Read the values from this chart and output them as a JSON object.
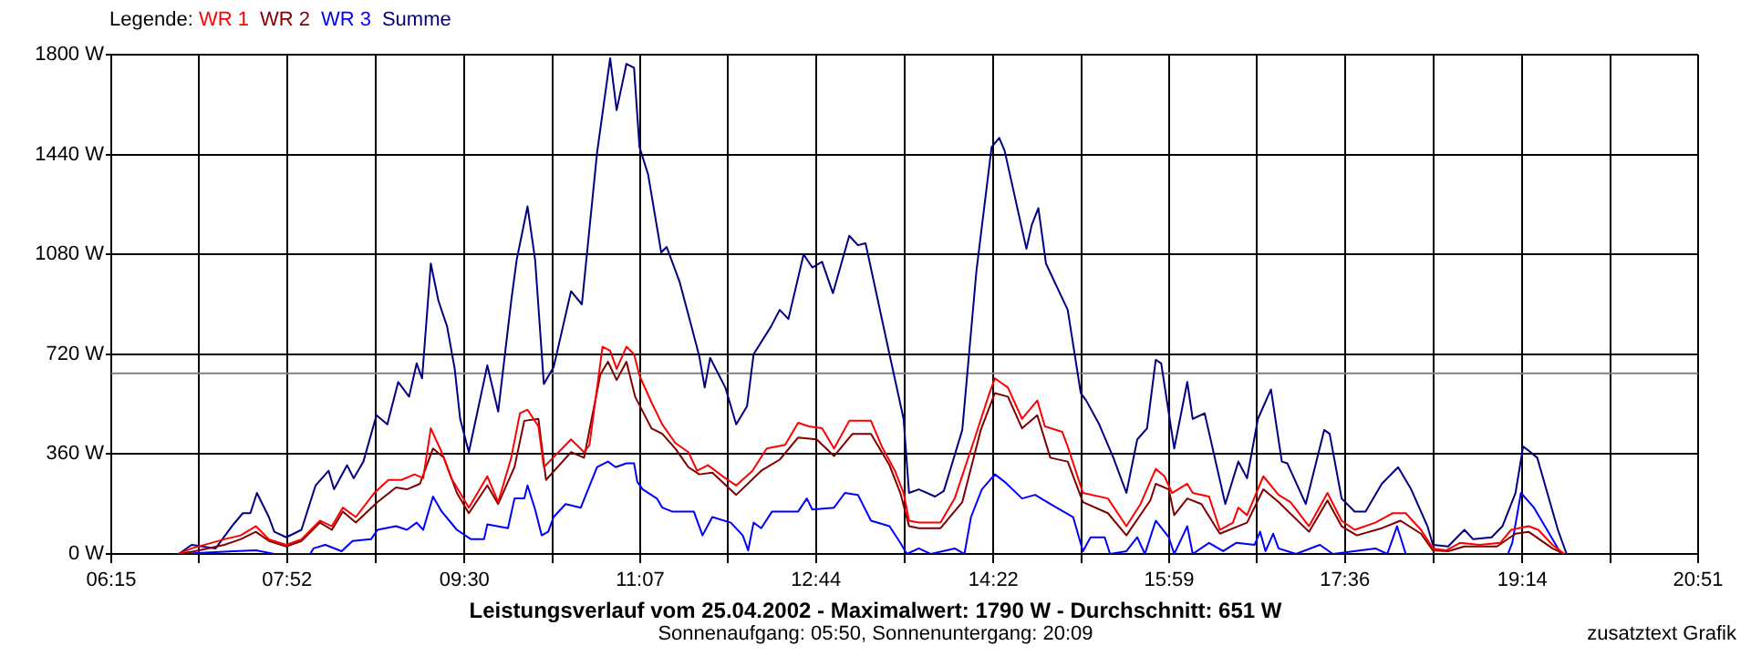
{
  "chart_data": {
    "type": "line",
    "xlabel": "Leistungsverlauf vom 25.04.2002 - Maximalwert: 1790 W - Durchschnitt: 651 W",
    "legend_title": "Legende:",
    "legend": "top left",
    "grid": true,
    "marker": "none",
    "line_style": "solid",
    "xlim": [
      6.25,
      20.85
    ],
    "xticks": [
      {
        "value": 6.25,
        "label": "06:15"
      },
      {
        "value": 7.0583,
        "label": null
      },
      {
        "value": 7.8667,
        "label": "07:52"
      },
      {
        "value": 8.6833,
        "label": null
      },
      {
        "value": 9.5,
        "label": "09:30"
      },
      {
        "value": 10.3083,
        "label": null
      },
      {
        "value": 11.1167,
        "label": "11:07"
      },
      {
        "value": 11.925,
        "label": null
      },
      {
        "value": 12.7333,
        "label": "12:44"
      },
      {
        "value": 13.55,
        "label": null
      },
      {
        "value": 14.3667,
        "label": "14:22"
      },
      {
        "value": 15.175,
        "label": null
      },
      {
        "value": 15.9833,
        "label": "15:59"
      },
      {
        "value": 16.7917,
        "label": null
      },
      {
        "value": 17.6,
        "label": "17:36"
      },
      {
        "value": 18.4167,
        "label": null
      },
      {
        "value": 19.2333,
        "label": "19:14"
      },
      {
        "value": 20.0417,
        "label": null
      },
      {
        "value": 20.85,
        "label": "20:51"
      }
    ],
    "ylim": [
      0,
      1800
    ],
    "yticks": [
      {
        "value": 0,
        "label": "0 W"
      },
      {
        "value": 360,
        "label": "360 W"
      },
      {
        "value": 720,
        "label": "720 W"
      },
      {
        "value": 1080,
        "label": "1080 W"
      },
      {
        "value": 1440,
        "label": "1440 W"
      },
      {
        "value": 1800,
        "label": "1800 W"
      }
    ],
    "ref_lines": [
      {
        "axis": "y",
        "value": 651,
        "color": "#808080"
      }
    ],
    "annotations": [
      "Sonnenaufgang: 05:50, Sonnenuntergang: 20:09",
      "zusatztext Grafik"
    ],
    "series": [
      {
        "name": "WR 1",
        "color": "#ff0000",
        "x": [
          6.87,
          6.99,
          7.29,
          7.44,
          7.58,
          7.7,
          7.86,
          8.0,
          8.17,
          8.28,
          8.38,
          8.5,
          8.67,
          8.8,
          8.92,
          9.04,
          9.12,
          9.19,
          9.29,
          9.38,
          9.54,
          9.71,
          9.81,
          9.93,
          10.01,
          10.08,
          10.18,
          10.23,
          10.48,
          10.6,
          10.65,
          10.77,
          10.84,
          10.9,
          10.99,
          11.06,
          11.11,
          11.22,
          11.32,
          11.44,
          11.56,
          11.64,
          11.74,
          11.9,
          12.0,
          12.15,
          12.28,
          12.45,
          12.57,
          12.67,
          12.79,
          12.9,
          13.04,
          13.24,
          13.34,
          13.46,
          13.54,
          13.59,
          13.68,
          13.88,
          14.01,
          14.18,
          14.33,
          14.38,
          14.5,
          14.63,
          14.77,
          14.84,
          15.0,
          15.05,
          15.19,
          15.42,
          15.59,
          15.72,
          15.86,
          15.94,
          16.01,
          16.15,
          16.2,
          16.35,
          16.45,
          16.57,
          16.62,
          16.7,
          16.85,
          16.99,
          17.1,
          17.27,
          17.44,
          17.57,
          17.69,
          17.88,
          18.04,
          18.16,
          18.3,
          18.41,
          18.53,
          18.66,
          18.84,
          19.03,
          19.13,
          19.29,
          19.38,
          19.51,
          19.62
        ],
        "values": [
          0,
          20,
          53,
          67,
          100,
          53,
          33,
          53,
          120,
          100,
          167,
          133,
          220,
          267,
          267,
          287,
          273,
          453,
          367,
          273,
          167,
          280,
          187,
          347,
          507,
          520,
          460,
          313,
          413,
          367,
          393,
          747,
          733,
          667,
          747,
          720,
          643,
          547,
          467,
          400,
          367,
          300,
          320,
          273,
          247,
          300,
          380,
          393,
          473,
          460,
          453,
          380,
          480,
          480,
          387,
          300,
          220,
          120,
          113,
          113,
          200,
          400,
          580,
          633,
          600,
          487,
          553,
          460,
          440,
          387,
          220,
          200,
          100,
          180,
          307,
          280,
          220,
          253,
          220,
          207,
          87,
          113,
          167,
          140,
          280,
          213,
          187,
          100,
          220,
          120,
          87,
          113,
          147,
          147,
          87,
          20,
          13,
          40,
          33,
          40,
          87,
          100,
          87,
          33,
          0
        ]
      },
      {
        "name": "WR 2",
        "color": "#800000",
        "x": [
          6.87,
          7.02,
          7.29,
          7.44,
          7.58,
          7.7,
          7.86,
          8.0,
          8.17,
          8.28,
          8.38,
          8.5,
          8.7,
          8.87,
          8.97,
          9.09,
          9.21,
          9.31,
          9.43,
          9.54,
          9.71,
          9.81,
          9.96,
          10.05,
          10.18,
          10.25,
          10.48,
          10.6,
          10.75,
          10.82,
          10.9,
          10.99,
          11.07,
          11.22,
          11.32,
          11.44,
          11.56,
          11.66,
          11.78,
          12.0,
          12.23,
          12.4,
          12.57,
          12.74,
          12.9,
          13.07,
          13.24,
          13.41,
          13.51,
          13.59,
          13.68,
          13.88,
          14.08,
          14.25,
          14.38,
          14.5,
          14.63,
          14.77,
          14.89,
          15.05,
          15.19,
          15.42,
          15.59,
          15.81,
          15.86,
          15.98,
          16.03,
          16.15,
          16.28,
          16.45,
          16.7,
          16.85,
          16.99,
          17.27,
          17.44,
          17.57,
          17.71,
          17.94,
          18.11,
          18.3,
          18.41,
          18.55,
          18.7,
          19.0,
          19.17,
          19.29,
          19.51,
          19.62
        ],
        "values": [
          0,
          10,
          33,
          53,
          80,
          47,
          27,
          47,
          113,
          87,
          153,
          113,
          187,
          240,
          233,
          253,
          380,
          347,
          220,
          147,
          247,
          180,
          313,
          480,
          487,
          267,
          367,
          347,
          647,
          693,
          627,
          693,
          567,
          453,
          433,
          380,
          313,
          287,
          293,
          213,
          300,
          340,
          420,
          413,
          353,
          433,
          433,
          320,
          220,
          100,
          93,
          93,
          187,
          447,
          580,
          567,
          453,
          500,
          347,
          333,
          187,
          147,
          67,
          193,
          253,
          233,
          140,
          200,
          180,
          73,
          113,
          233,
          187,
          80,
          193,
          100,
          67,
          93,
          120,
          73,
          13,
          10,
          27,
          27,
          73,
          80,
          20,
          0
        ]
      },
      {
        "name": "WR 3",
        "color": "#0000ff",
        "x": [
          6.87,
          7.38,
          7.58,
          7.75,
          8.08,
          8.11,
          8.22,
          8.37,
          8.47,
          8.64,
          8.7,
          8.87,
          8.97,
          9.06,
          9.12,
          9.21,
          9.29,
          9.43,
          9.56,
          9.68,
          9.71,
          9.9,
          9.96,
          10.05,
          10.08,
          10.15,
          10.21,
          10.27,
          10.32,
          10.43,
          10.57,
          10.72,
          10.82,
          10.89,
          10.99,
          11.06,
          11.09,
          11.14,
          11.27,
          11.32,
          11.41,
          11.61,
          11.69,
          11.78,
          11.95,
          12.06,
          12.11,
          12.16,
          12.23,
          12.33,
          12.57,
          12.65,
          12.7,
          12.9,
          13.0,
          13.12,
          13.24,
          13.41,
          13.51,
          13.57,
          13.68,
          13.79,
          14.01,
          14.1,
          14.16,
          14.26,
          14.38,
          14.47,
          14.63,
          14.75,
          14.89,
          15.1,
          15.19,
          15.26,
          15.39,
          15.44,
          15.59,
          15.69,
          15.76,
          15.86,
          15.98,
          16.03,
          16.15,
          16.2,
          16.35,
          16.48,
          16.6,
          16.77,
          16.82,
          16.87,
          16.94,
          16.99,
          17.15,
          17.37,
          17.49,
          17.88,
          17.99,
          18.08,
          18.16,
          19.1,
          19.14,
          19.22,
          19.34,
          19.46,
          19.59
        ],
        "values": [
          0,
          10,
          13,
          0,
          0,
          20,
          33,
          10,
          47,
          53,
          87,
          100,
          87,
          113,
          87,
          207,
          153,
          87,
          53,
          53,
          107,
          93,
          200,
          200,
          247,
          160,
          67,
          80,
          133,
          180,
          167,
          313,
          333,
          313,
          327,
          327,
          260,
          233,
          200,
          167,
          153,
          153,
          67,
          133,
          113,
          67,
          13,
          113,
          93,
          153,
          153,
          200,
          160,
          167,
          220,
          213,
          120,
          100,
          40,
          0,
          20,
          0,
          20,
          0,
          133,
          233,
          287,
          260,
          200,
          213,
          180,
          133,
          10,
          60,
          60,
          0,
          10,
          60,
          0,
          120,
          60,
          0,
          100,
          0,
          40,
          10,
          40,
          33,
          80,
          10,
          73,
          20,
          0,
          33,
          0,
          20,
          0,
          100,
          0,
          0,
          40,
          220,
          167,
          87,
          0
        ]
      },
      {
        "name": "Summe",
        "color": "#000080",
        "x": [
          6.8,
          6.87,
          6.99,
          7.21,
          7.36,
          7.46,
          7.53,
          7.59,
          7.7,
          7.75,
          7.86,
          8.0,
          8.13,
          8.25,
          8.3,
          8.42,
          8.48,
          8.57,
          8.69,
          8.79,
          8.89,
          8.99,
          9.06,
          9.11,
          9.19,
          9.26,
          9.34,
          9.41,
          9.46,
          9.54,
          9.71,
          9.81,
          9.93,
          9.98,
          10.08,
          10.15,
          10.23,
          10.32,
          10.48,
          10.58,
          10.72,
          10.84,
          10.9,
          10.99,
          11.06,
          11.11,
          11.19,
          11.31,
          11.36,
          11.48,
          11.58,
          11.66,
          11.71,
          11.76,
          11.9,
          12.0,
          12.1,
          12.16,
          12.32,
          12.4,
          12.48,
          12.62,
          12.7,
          12.79,
          12.89,
          13.04,
          13.12,
          13.19,
          13.41,
          13.54,
          13.59,
          13.68,
          13.83,
          13.91,
          14.08,
          14.21,
          14.35,
          14.42,
          14.47,
          14.67,
          14.72,
          14.78,
          14.85,
          15.05,
          15.17,
          15.22,
          15.34,
          15.47,
          15.59,
          15.69,
          15.78,
          15.86,
          15.91,
          16.03,
          16.15,
          16.2,
          16.31,
          16.5,
          16.62,
          16.7,
          16.8,
          16.92,
          17.02,
          17.07,
          17.24,
          17.41,
          17.46,
          17.57,
          17.69,
          17.79,
          17.94,
          18.09,
          18.21,
          18.36,
          18.41,
          18.55,
          18.7,
          18.78,
          18.95,
          19.05,
          19.17,
          19.24,
          19.29,
          19.37,
          19.56,
          19.64
        ],
        "values": [
          0,
          0,
          33,
          20,
          100,
          147,
          147,
          220,
          133,
          80,
          60,
          87,
          247,
          300,
          233,
          320,
          273,
          333,
          500,
          467,
          620,
          567,
          687,
          633,
          1047,
          913,
          820,
          667,
          487,
          367,
          680,
          513,
          913,
          1060,
          1253,
          1060,
          613,
          673,
          947,
          900,
          1447,
          1787,
          1600,
          1767,
          1753,
          1467,
          1367,
          1087,
          1107,
          980,
          833,
          713,
          600,
          707,
          600,
          467,
          533,
          720,
          820,
          880,
          847,
          1080,
          1033,
          1053,
          940,
          1147,
          1113,
          1120,
          720,
          487,
          220,
          233,
          207,
          227,
          447,
          1020,
          1467,
          1500,
          1453,
          1100,
          1187,
          1247,
          1047,
          880,
          580,
          553,
          467,
          347,
          220,
          413,
          453,
          700,
          687,
          380,
          620,
          487,
          507,
          180,
          333,
          273,
          487,
          593,
          333,
          327,
          180,
          447,
          433,
          200,
          153,
          153,
          253,
          313,
          233,
          100,
          33,
          27,
          87,
          53,
          60,
          100,
          220,
          387,
          373,
          347,
          87,
          0
        ]
      }
    ]
  }
}
